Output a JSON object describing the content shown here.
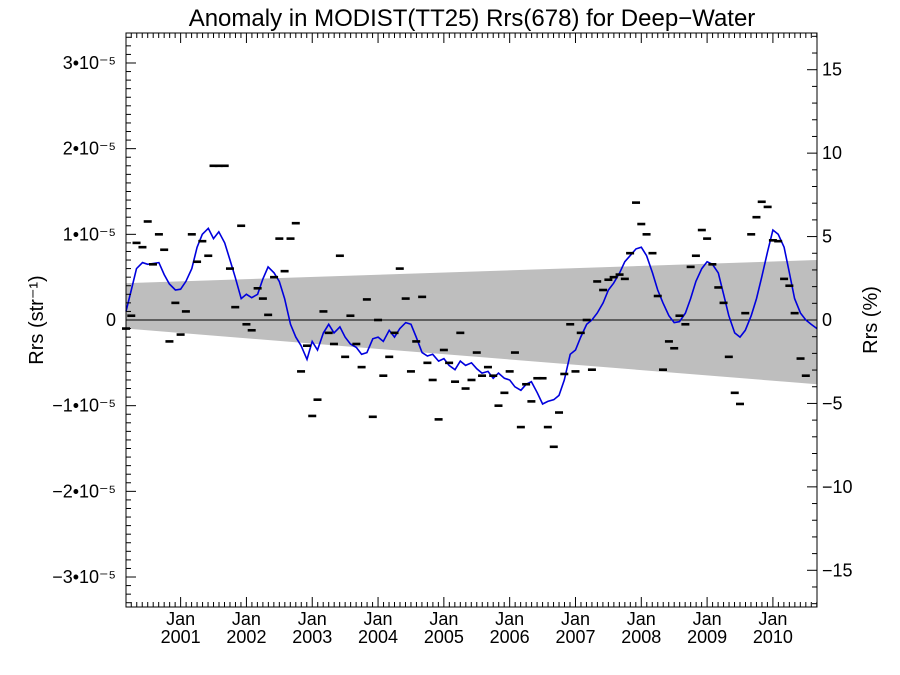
{
  "chart_data": {
    "type": "line",
    "title": "Anomaly in MODIST(TT25) Rrs(678) for Deep−Water",
    "ylabel_left": "Rrs (str⁻¹)",
    "ylabel_right": "Rrs (%)",
    "x_range": [
      2000.17,
      2010.67
    ],
    "ylim_left": [
      -3.35e-05,
      3.35e-05
    ],
    "ylim_right": [
      -17.2,
      17.2
    ],
    "left_ticks": [
      {
        "value": 3e-05,
        "label": "3•10⁻⁵"
      },
      {
        "value": 2e-05,
        "label": "2•10⁻⁵"
      },
      {
        "value": 1e-05,
        "label": "1•10⁻⁵"
      },
      {
        "value": 0,
        "label": "0"
      },
      {
        "value": -1e-05,
        "label": "−1•10⁻⁵"
      },
      {
        "value": -2e-05,
        "label": "−2•10⁻⁵"
      },
      {
        "value": -3e-05,
        "label": "−3•10⁻⁵"
      }
    ],
    "right_ticks": [
      {
        "value": 15,
        "label": "15"
      },
      {
        "value": 10,
        "label": "10"
      },
      {
        "value": 5,
        "label": "5"
      },
      {
        "value": 0,
        "label": "0"
      },
      {
        "value": -5,
        "label": "−5"
      },
      {
        "value": -10,
        "label": "−10"
      },
      {
        "value": -15,
        "label": "−15"
      }
    ],
    "x_ticks": [
      {
        "x": 2001.0,
        "month": "Jan",
        "year": "2001"
      },
      {
        "x": 2002.0,
        "month": "Jan",
        "year": "2002"
      },
      {
        "x": 2003.0,
        "month": "Jan",
        "year": "2003"
      },
      {
        "x": 2004.0,
        "month": "Jan",
        "year": "2004"
      },
      {
        "x": 2005.0,
        "month": "Jan",
        "year": "2005"
      },
      {
        "x": 2006.0,
        "month": "Jan",
        "year": "2006"
      },
      {
        "x": 2007.0,
        "month": "Jan",
        "year": "2007"
      },
      {
        "x": 2008.0,
        "month": "Jan",
        "year": "2008"
      },
      {
        "x": 2009.0,
        "month": "Jan",
        "year": "2009"
      },
      {
        "x": 2010.0,
        "month": "Jan",
        "year": "2010"
      }
    ],
    "uncertainty_band": {
      "x": [
        2000.17,
        2010.67
      ],
      "upper": [
        4.3e-06,
        7e-06
      ],
      "lower": [
        -1e-06,
        -7.5e-06
      ],
      "color": "#bebebe"
    },
    "zero_line": 0,
    "smoothed_series": {
      "color": "#0000dd",
      "points": [
        [
          2000.17,
          1e-06
        ],
        [
          2000.25,
          3.5e-06
        ],
        [
          2000.33,
          6e-06
        ],
        [
          2000.42,
          6.7e-06
        ],
        [
          2000.5,
          6.5e-06
        ],
        [
          2000.58,
          6.6e-06
        ],
        [
          2000.67,
          6.7e-06
        ],
        [
          2000.75,
          5.3e-06
        ],
        [
          2000.83,
          4.2e-06
        ],
        [
          2000.92,
          3.5e-06
        ],
        [
          2001.0,
          3.6e-06
        ],
        [
          2001.08,
          4.5e-06
        ],
        [
          2001.17,
          6e-06
        ],
        [
          2001.25,
          8.5e-06
        ],
        [
          2001.33,
          1e-05
        ],
        [
          2001.42,
          1.07e-05
        ],
        [
          2001.5,
          9.5e-06
        ],
        [
          2001.58,
          1.03e-05
        ],
        [
          2001.67,
          9e-06
        ],
        [
          2001.75,
          7e-06
        ],
        [
          2001.83,
          5e-06
        ],
        [
          2001.92,
          2.5e-06
        ],
        [
          2002.0,
          3e-06
        ],
        [
          2002.08,
          2.6e-06
        ],
        [
          2002.17,
          3e-06
        ],
        [
          2002.25,
          4.8e-06
        ],
        [
          2002.33,
          6.2e-06
        ],
        [
          2002.42,
          5.5e-06
        ],
        [
          2002.5,
          4.5e-06
        ],
        [
          2002.58,
          2.5e-06
        ],
        [
          2002.67,
          -5e-07
        ],
        [
          2002.75,
          -2e-06
        ],
        [
          2002.83,
          -3e-06
        ],
        [
          2002.92,
          -4.6e-06
        ],
        [
          2003.0,
          -2.5e-06
        ],
        [
          2003.08,
          -3.5e-06
        ],
        [
          2003.17,
          -1.5e-06
        ],
        [
          2003.25,
          -5e-07
        ],
        [
          2003.33,
          -1.5e-06
        ],
        [
          2003.42,
          -8e-07
        ],
        [
          2003.5,
          -2e-06
        ],
        [
          2003.58,
          -2.8e-06
        ],
        [
          2003.67,
          -3.2e-06
        ],
        [
          2003.75,
          -4e-06
        ],
        [
          2003.83,
          -3.8e-06
        ],
        [
          2003.92,
          -2.2e-06
        ],
        [
          2004.0,
          -2e-06
        ],
        [
          2004.08,
          -2.5e-06
        ],
        [
          2004.17,
          -1.2e-06
        ],
        [
          2004.25,
          -2e-06
        ],
        [
          2004.33,
          -1e-06
        ],
        [
          2004.42,
          -3e-07
        ],
        [
          2004.5,
          -5e-07
        ],
        [
          2004.58,
          -2e-06
        ],
        [
          2004.67,
          -3.8e-06
        ],
        [
          2004.75,
          -4.2e-06
        ],
        [
          2004.83,
          -4e-06
        ],
        [
          2004.92,
          -4.8e-06
        ],
        [
          2005.0,
          -4.5e-06
        ],
        [
          2005.08,
          -5.3e-06
        ],
        [
          2005.17,
          -5.8e-06
        ],
        [
          2005.25,
          -4.8e-06
        ],
        [
          2005.33,
          -5.3e-06
        ],
        [
          2005.42,
          -5e-06
        ],
        [
          2005.5,
          -5.7e-06
        ],
        [
          2005.58,
          -6.2e-06
        ],
        [
          2005.67,
          -6e-06
        ],
        [
          2005.75,
          -6.8e-06
        ],
        [
          2005.83,
          -6.2e-06
        ],
        [
          2005.92,
          -6.8e-06
        ],
        [
          2006.0,
          -7e-06
        ],
        [
          2006.08,
          -7.8e-06
        ],
        [
          2006.17,
          -8.2e-06
        ],
        [
          2006.25,
          -7.5e-06
        ],
        [
          2006.33,
          -7.2e-06
        ],
        [
          2006.42,
          -8.5e-06
        ],
        [
          2006.5,
          -9.8e-06
        ],
        [
          2006.58,
          -9.5e-06
        ],
        [
          2006.67,
          -9.3e-06
        ],
        [
          2006.75,
          -8.8e-06
        ],
        [
          2006.83,
          -7e-06
        ],
        [
          2006.92,
          -4e-06
        ],
        [
          2007.0,
          -3.5e-06
        ],
        [
          2007.08,
          -2e-06
        ],
        [
          2007.17,
          -5e-07
        ],
        [
          2007.25,
          0.0
        ],
        [
          2007.33,
          8e-07
        ],
        [
          2007.42,
          2e-06
        ],
        [
          2007.5,
          3.5e-06
        ],
        [
          2007.58,
          4.3e-06
        ],
        [
          2007.67,
          5.5e-06
        ],
        [
          2007.75,
          6.8e-06
        ],
        [
          2007.83,
          7.5e-06
        ],
        [
          2007.92,
          8.3e-06
        ],
        [
          2008.0,
          8.5e-06
        ],
        [
          2008.08,
          7.5e-06
        ],
        [
          2008.17,
          5.5e-06
        ],
        [
          2008.25,
          3.5e-06
        ],
        [
          2008.33,
          2e-06
        ],
        [
          2008.42,
          5e-07
        ],
        [
          2008.5,
          -3e-07
        ],
        [
          2008.58,
          -2e-07
        ],
        [
          2008.67,
          8e-07
        ],
        [
          2008.75,
          2.5e-06
        ],
        [
          2008.83,
          4.5e-06
        ],
        [
          2008.92,
          6e-06
        ],
        [
          2009.0,
          6.8e-06
        ],
        [
          2009.08,
          6.5e-06
        ],
        [
          2009.17,
          5.5e-06
        ],
        [
          2009.25,
          3e-06
        ],
        [
          2009.33,
          5e-07
        ],
        [
          2009.42,
          -1.5e-06
        ],
        [
          2009.5,
          -2e-06
        ],
        [
          2009.58,
          -1.2e-06
        ],
        [
          2009.67,
          5e-07
        ],
        [
          2009.75,
          2.5e-06
        ],
        [
          2009.83,
          5e-06
        ],
        [
          2009.92,
          8e-06
        ],
        [
          2010.0,
          1.05e-05
        ],
        [
          2010.08,
          1e-05
        ],
        [
          2010.17,
          8.5e-06
        ],
        [
          2010.25,
          5.5e-06
        ],
        [
          2010.33,
          2.5e-06
        ],
        [
          2010.42,
          8e-07
        ],
        [
          2010.5,
          0.0
        ],
        [
          2010.58,
          -5e-07
        ],
        [
          2010.67,
          -1e-06
        ]
      ]
    },
    "monthly_points": {
      "color": "#000000",
      "points": [
        [
          2000.17,
          -1e-06
        ],
        [
          2000.25,
          5e-07
        ],
        [
          2000.33,
          9e-06
        ],
        [
          2000.42,
          8.5e-06
        ],
        [
          2000.5,
          1.15e-05
        ],
        [
          2000.58,
          6.5e-06
        ],
        [
          2000.67,
          1e-05
        ],
        [
          2000.75,
          8.2e-06
        ],
        [
          2000.83,
          -2.5e-06
        ],
        [
          2000.92,
          2e-06
        ],
        [
          2001.0,
          -1.7e-06
        ],
        [
          2001.08,
          1e-06
        ],
        [
          2001.17,
          1e-05
        ],
        [
          2001.25,
          6.8e-06
        ],
        [
          2001.33,
          9.2e-06
        ],
        [
          2001.42,
          7.5e-06
        ],
        [
          2001.5,
          1.8e-05
        ],
        [
          2001.58,
          1.8e-05
        ],
        [
          2001.67,
          1.8e-05
        ],
        [
          2001.75,
          6e-06
        ],
        [
          2001.83,
          1.5e-06
        ],
        [
          2001.92,
          1.1e-05
        ],
        [
          2002.0,
          -5e-07
        ],
        [
          2002.08,
          -1.2e-06
        ],
        [
          2002.17,
          3.7e-06
        ],
        [
          2002.25,
          2.5e-06
        ],
        [
          2002.33,
          6e-07
        ],
        [
          2002.42,
          5e-06
        ],
        [
          2002.5,
          9.5e-06
        ],
        [
          2002.58,
          5.7e-06
        ],
        [
          2002.67,
          9.5e-06
        ],
        [
          2002.75,
          1.13e-05
        ],
        [
          2002.83,
          -6e-06
        ],
        [
          2002.92,
          -3e-06
        ],
        [
          2003.0,
          -1.12e-05
        ],
        [
          2003.08,
          -9.3e-06
        ],
        [
          2003.17,
          1e-06
        ],
        [
          2003.25,
          -1.5e-06
        ],
        [
          2003.33,
          -2.8e-06
        ],
        [
          2003.42,
          7.5e-06
        ],
        [
          2003.5,
          -4.3e-06
        ],
        [
          2003.58,
          5e-07
        ],
        [
          2003.67,
          -2.8e-06
        ],
        [
          2003.75,
          -5.5e-06
        ],
        [
          2003.83,
          2.4e-06
        ],
        [
          2003.92,
          -1.13e-05
        ],
        [
          2004.0,
          0.0
        ],
        [
          2004.08,
          -6.5e-06
        ],
        [
          2004.17,
          -4.3e-06
        ],
        [
          2004.25,
          -1.5e-06
        ],
        [
          2004.33,
          6e-06
        ],
        [
          2004.42,
          2.5e-06
        ],
        [
          2004.5,
          -6e-06
        ],
        [
          2004.58,
          -2.5e-06
        ],
        [
          2004.67,
          2.7e-06
        ],
        [
          2004.75,
          -5e-06
        ],
        [
          2004.83,
          -7e-06
        ],
        [
          2004.92,
          -1.16e-05
        ],
        [
          2005.0,
          -3.5e-06
        ],
        [
          2005.08,
          -5e-06
        ],
        [
          2005.17,
          -7.2e-06
        ],
        [
          2005.25,
          -1.5e-06
        ],
        [
          2005.33,
          -8e-06
        ],
        [
          2005.42,
          -7e-06
        ],
        [
          2005.5,
          -3.8e-06
        ],
        [
          2005.58,
          -6.5e-06
        ],
        [
          2005.67,
          -5.5e-06
        ],
        [
          2005.75,
          -6.5e-06
        ],
        [
          2005.83,
          -1e-05
        ],
        [
          2005.92,
          -8.5e-06
        ],
        [
          2006.0,
          -6e-06
        ],
        [
          2006.08,
          -3.8e-06
        ],
        [
          2006.17,
          -1.25e-05
        ],
        [
          2006.25,
          -7.5e-06
        ],
        [
          2006.33,
          -9.5e-06
        ],
        [
          2006.42,
          -6.8e-06
        ],
        [
          2006.5,
          -6.8e-06
        ],
        [
          2006.58,
          -1.25e-05
        ],
        [
          2006.67,
          -1.48e-05
        ],
        [
          2006.75,
          -1.08e-05
        ],
        [
          2006.83,
          -6.3e-06
        ],
        [
          2006.92,
          -5e-07
        ],
        [
          2007.0,
          -6e-06
        ],
        [
          2007.08,
          -1.5e-06
        ],
        [
          2007.17,
          0.0
        ],
        [
          2007.25,
          -5.8e-06
        ],
        [
          2007.33,
          4.5e-06
        ],
        [
          2007.42,
          3.5e-06
        ],
        [
          2007.5,
          4.7e-06
        ],
        [
          2007.58,
          5e-06
        ],
        [
          2007.67,
          5.3e-06
        ],
        [
          2007.75,
          4.8e-06
        ],
        [
          2007.83,
          7.8e-06
        ],
        [
          2007.92,
          1.37e-05
        ],
        [
          2008.0,
          1.12e-05
        ],
        [
          2008.08,
          1e-05
        ],
        [
          2008.17,
          7.8e-06
        ],
        [
          2008.25,
          2.8e-06
        ],
        [
          2008.33,
          -5.8e-06
        ],
        [
          2008.42,
          -2.5e-06
        ],
        [
          2008.5,
          -3.3e-06
        ],
        [
          2008.58,
          5e-07
        ],
        [
          2008.67,
          -5e-07
        ],
        [
          2008.75,
          6.2e-06
        ],
        [
          2008.83,
          7.5e-06
        ],
        [
          2008.92,
          1.05e-05
        ],
        [
          2009.0,
          9.5e-06
        ],
        [
          2009.08,
          6.5e-06
        ],
        [
          2009.17,
          3.8e-06
        ],
        [
          2009.25,
          2e-06
        ],
        [
          2009.33,
          -4.3e-06
        ],
        [
          2009.42,
          -8.5e-06
        ],
        [
          2009.5,
          -9.8e-06
        ],
        [
          2009.58,
          8e-07
        ],
        [
          2009.67,
          1e-05
        ],
        [
          2009.75,
          1.2e-05
        ],
        [
          2009.83,
          1.38e-05
        ],
        [
          2009.92,
          1.32e-05
        ],
        [
          2010.0,
          9.3e-06
        ],
        [
          2010.08,
          9.2e-06
        ],
        [
          2010.17,
          4.8e-06
        ],
        [
          2010.25,
          4e-06
        ],
        [
          2010.33,
          8e-07
        ],
        [
          2010.42,
          -4.5e-06
        ],
        [
          2010.5,
          -6.5e-06
        ]
      ]
    }
  }
}
